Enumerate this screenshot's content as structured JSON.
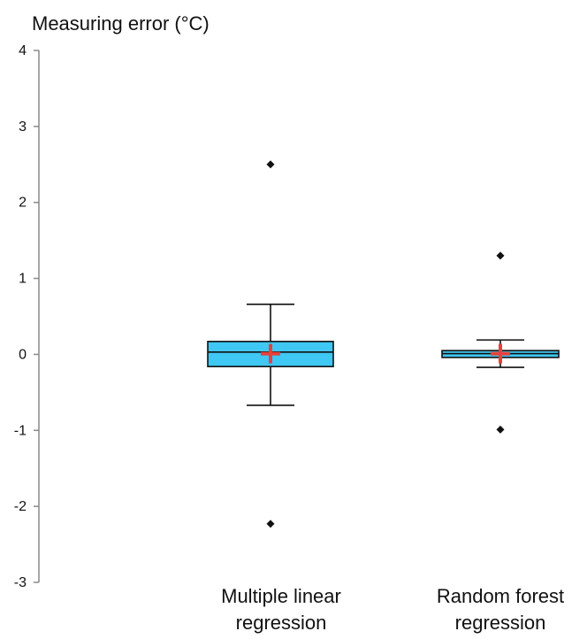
{
  "chart_data": {
    "type": "box",
    "ylabel": "Measuring error (°C)",
    "ylim": [
      -3,
      4
    ],
    "yticks": [
      4,
      3,
      2,
      1,
      0,
      -1,
      -2,
      -3
    ],
    "grid": false,
    "series": [
      {
        "name": "",
        "label_lines": [
          "Multiple linear",
          "regression"
        ],
        "whisker_low": -0.67,
        "q1": -0.16,
        "median": 0.03,
        "q3": 0.17,
        "whisker_high": 0.66,
        "mean": 0.01,
        "outliers": [
          2.5,
          -2.23
        ]
      },
      {
        "name": "",
        "label_lines": [
          "Random forest",
          "regression"
        ],
        "whisker_low": -0.17,
        "q1": -0.04,
        "median": 0.01,
        "q3": 0.05,
        "whisker_high": 0.19,
        "mean": 0.01,
        "outliers": [
          1.3,
          -0.99
        ]
      }
    ],
    "colors": {
      "box_fill": "#3ec8f3",
      "mean_marker": "#e8403a",
      "axis": "#8a8a8a"
    }
  }
}
